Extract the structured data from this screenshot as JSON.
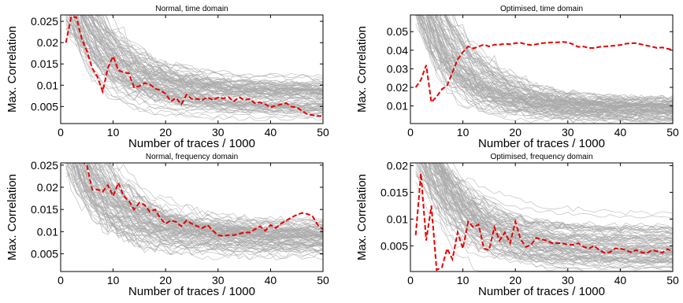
{
  "chart_data": [
    {
      "type": "line",
      "title": "Normal, time domain",
      "xlabel": "Number of traces / 1000",
      "ylabel": "Max. Correlation",
      "xlim": [
        0,
        50
      ],
      "ylim": [
        0.001,
        0.0265
      ],
      "xticks": [
        "0",
        "10",
        "20",
        "30",
        "40",
        "50"
      ],
      "yticks": [
        "0.005",
        "0.01",
        "0.015",
        "0.02",
        "0.025"
      ],
      "xtick_values": [
        0,
        10,
        20,
        30,
        40,
        50
      ],
      "ytick_values": [
        0.005,
        0.01,
        0.015,
        0.02,
        0.025
      ],
      "grid": false,
      "highlight_series": {
        "style": "red-dashed",
        "x": [
          1,
          2,
          3,
          4,
          5,
          6,
          7,
          8,
          9,
          10,
          11,
          12,
          13,
          14,
          15,
          16,
          17,
          18,
          19,
          20,
          21,
          22,
          23,
          24,
          25,
          26,
          27,
          28,
          29,
          30,
          31,
          32,
          33,
          34,
          35,
          36,
          37,
          38,
          39,
          40,
          41,
          42,
          43,
          44,
          45,
          46,
          47,
          48,
          49,
          50
        ],
        "y": [
          0.02,
          0.026,
          0.026,
          0.021,
          0.018,
          0.014,
          0.012,
          0.0085,
          0.014,
          0.0168,
          0.0135,
          0.013,
          0.0128,
          0.0095,
          0.0098,
          0.0105,
          0.0102,
          0.0092,
          0.0088,
          0.008,
          0.0062,
          0.007,
          0.0055,
          0.0078,
          0.0068,
          0.0068,
          0.0065,
          0.0072,
          0.0065,
          0.0071,
          0.0069,
          0.0072,
          0.0062,
          0.0072,
          0.0065,
          0.0068,
          0.0058,
          0.006,
          0.0055,
          0.0048,
          0.0052,
          0.0055,
          0.0058,
          0.005,
          0.0048,
          0.004,
          0.0032,
          0.003,
          0.0028,
          0.0027
        ]
      },
      "background_series": {
        "style": "grey-thin",
        "count": 90,
        "description_free": true,
        "x_range": [
          1,
          50
        ],
        "start_level": 0.026,
        "end_center": 0.0068,
        "end_spread": 0.005,
        "floor": 0.0015
      }
    },
    {
      "type": "line",
      "title": "Optimised, time domain",
      "xlabel": "Number of traces / 1000",
      "ylabel": "Max. Correlation",
      "xlim": [
        0,
        50
      ],
      "ylim": [
        0.0005,
        0.059
      ],
      "xticks": [
        "0",
        "10",
        "20",
        "30",
        "40",
        "50"
      ],
      "yticks": [
        "0.01",
        "0.02",
        "0.03",
        "0.04",
        "0.05"
      ],
      "xtick_values": [
        0,
        10,
        20,
        30,
        40,
        50
      ],
      "ytick_values": [
        0.01,
        0.02,
        0.03,
        0.04,
        0.05
      ],
      "grid": false,
      "highlight_series": {
        "style": "red-dashed",
        "x": [
          1,
          2,
          3,
          4,
          5,
          6,
          7,
          8,
          9,
          10,
          11,
          12,
          13,
          14,
          15,
          16,
          17,
          18,
          19,
          20,
          21,
          22,
          23,
          24,
          25,
          26,
          27,
          28,
          29,
          30,
          31,
          32,
          33,
          34,
          35,
          36,
          37,
          38,
          39,
          40,
          41,
          42,
          43,
          44,
          45,
          46,
          47,
          48,
          49,
          50
        ],
        "y": [
          0.02,
          0.024,
          0.032,
          0.012,
          0.015,
          0.019,
          0.021,
          0.028,
          0.035,
          0.039,
          0.042,
          0.041,
          0.042,
          0.043,
          0.042,
          0.043,
          0.043,
          0.0435,
          0.0432,
          0.0438,
          0.044,
          0.0432,
          0.0428,
          0.0432,
          0.0438,
          0.044,
          0.0442,
          0.0442,
          0.0445,
          0.0442,
          0.0432,
          0.0418,
          0.042,
          0.0412,
          0.0412,
          0.0418,
          0.042,
          0.0422,
          0.0425,
          0.0428,
          0.0435,
          0.0438,
          0.0438,
          0.0432,
          0.0425,
          0.042,
          0.0412,
          0.0415,
          0.0408,
          0.0402
        ]
      },
      "background_series": {
        "style": "grey-thin",
        "count": 90,
        "x_range": [
          1,
          50
        ],
        "start_level": 0.059,
        "end_center": 0.0075,
        "end_spread": 0.007,
        "floor": 0.0008
      }
    },
    {
      "type": "line",
      "title": "Normal, frequency domain",
      "xlabel": "Number of traces / 1000",
      "ylabel": "Max. Correlation",
      "xlim": [
        0,
        50
      ],
      "ylim": [
        0.001,
        0.0255
      ],
      "xticks": [
        "0",
        "10",
        "20",
        "30",
        "40",
        "50"
      ],
      "yticks": [
        "0.005",
        "0.01",
        "0.015",
        "0.02",
        "0.025"
      ],
      "xtick_values": [
        0,
        10,
        20,
        30,
        40,
        50
      ],
      "ytick_values": [
        0.005,
        0.01,
        0.015,
        0.02,
        0.025
      ],
      "grid": false,
      "highlight_series": {
        "style": "red-dashed",
        "x": [
          4,
          5,
          6,
          7,
          8,
          9,
          10,
          11,
          12,
          13,
          14,
          15,
          16,
          17,
          18,
          19,
          20,
          21,
          22,
          23,
          24,
          25,
          26,
          27,
          28,
          29,
          30,
          31,
          32,
          33,
          34,
          35,
          36,
          37,
          38,
          39,
          40,
          41,
          42,
          43,
          44,
          45,
          46,
          47,
          48,
          49,
          50
        ],
        "y": [
          0.026,
          0.025,
          0.0195,
          0.0195,
          0.019,
          0.0205,
          0.018,
          0.021,
          0.018,
          0.017,
          0.015,
          0.0165,
          0.016,
          0.0145,
          0.015,
          0.013,
          0.0118,
          0.0125,
          0.0122,
          0.0112,
          0.0125,
          0.0118,
          0.0112,
          0.0108,
          0.0115,
          0.0102,
          0.0092,
          0.009,
          0.0092,
          0.0092,
          0.0095,
          0.0098,
          0.0098,
          0.0105,
          0.0112,
          0.0102,
          0.0115,
          0.0108,
          0.0118,
          0.0125,
          0.0132,
          0.0138,
          0.0142,
          0.014,
          0.0135,
          0.0115,
          0.0105
        ]
      },
      "background_series": {
        "style": "grey-thin",
        "count": 90,
        "x_range": [
          1,
          50
        ],
        "start_level": 0.0255,
        "end_center": 0.0085,
        "end_spread": 0.0045,
        "floor": 0.0035
      }
    },
    {
      "type": "line",
      "title": "Optimised, frequency domain",
      "xlabel": "Number of traces / 1000",
      "ylabel": "Max. Correlation",
      "xlim": [
        0,
        50
      ],
      "ylim": [
        0.0002,
        0.0205
      ],
      "xticks": [
        "0",
        "10",
        "20",
        "30",
        "40",
        "50"
      ],
      "yticks": [
        "0.005",
        "0.01",
        "0.015",
        "0.02"
      ],
      "xtick_values": [
        0,
        10,
        20,
        30,
        40,
        50
      ],
      "ytick_values": [
        0.005,
        0.01,
        0.015,
        0.02
      ],
      "grid": false,
      "highlight_series": {
        "style": "red-dashed",
        "x": [
          1,
          2,
          3,
          4,
          5,
          6,
          7,
          8,
          9,
          10,
          11,
          12,
          13,
          14,
          15,
          16,
          17,
          18,
          19,
          20,
          21,
          22,
          23,
          24,
          25,
          26,
          27,
          28,
          29,
          30,
          31,
          32,
          33,
          34,
          35,
          36,
          37,
          38,
          39,
          40,
          41,
          42,
          43,
          44,
          45,
          46,
          47,
          48,
          49,
          50
        ],
        "y": [
          0.007,
          0.0185,
          0.006,
          0.0125,
          0.0005,
          0.001,
          0.0045,
          0.0025,
          0.0075,
          0.0045,
          0.0095,
          0.0085,
          0.009,
          0.0045,
          0.0042,
          0.0085,
          0.006,
          0.0075,
          0.0055,
          0.0095,
          0.0062,
          0.0048,
          0.0052,
          0.0065,
          0.0062,
          0.006,
          0.0055,
          0.0055,
          0.0055,
          0.0052,
          0.0052,
          0.0055,
          0.0048,
          0.0045,
          0.005,
          0.0042,
          0.0037,
          0.0038,
          0.0045,
          0.0045,
          0.0042,
          0.0038,
          0.0042,
          0.0038,
          0.0036,
          0.0042,
          0.004,
          0.0037,
          0.0044,
          0.0039
        ]
      },
      "background_series": {
        "style": "grey-thin",
        "count": 90,
        "x_range": [
          1,
          50
        ],
        "start_level": 0.0205,
        "end_center": 0.0045,
        "end_spread": 0.006,
        "floor": 0.0003
      }
    }
  ]
}
